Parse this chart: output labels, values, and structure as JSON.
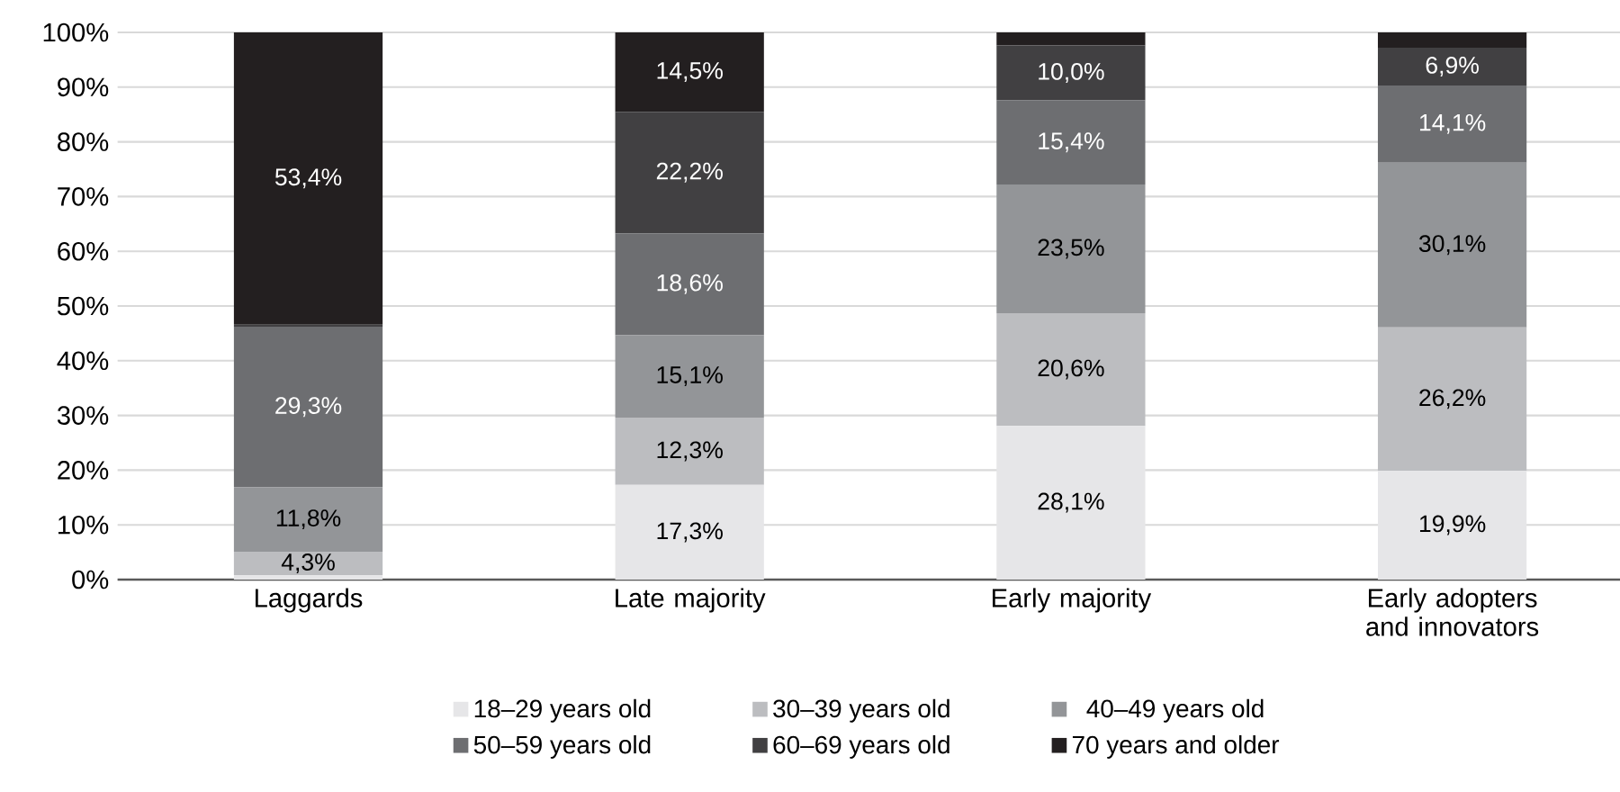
{
  "chart_data": {
    "type": "bar",
    "stacked": true,
    "categories": [
      "Laggards",
      "Late majority",
      "Early majority",
      "Early adopters and innovators"
    ],
    "series": [
      {
        "name": "18–29 years old",
        "color": "#e6e6e8",
        "values": [
          0.8,
          17.3,
          28.1,
          19.9
        ],
        "value_labels": [
          null,
          "17,3%",
          "28,1%",
          "19,9%"
        ]
      },
      {
        "name": "30–39 years old",
        "color": "#bcbdc0",
        "values": [
          4.3,
          12.3,
          20.6,
          26.2
        ],
        "value_labels": [
          "4,3%",
          "12,3%",
          "20,6%",
          "26,2%"
        ]
      },
      {
        "name": "40–49 years old",
        "color": "#939598",
        "values": [
          11.8,
          15.1,
          23.5,
          30.1
        ],
        "value_labels": [
          "11,8%",
          "15,1%",
          "23,5%",
          "30,1%"
        ]
      },
      {
        "name": "50–59 years old",
        "color": "#6d6e71",
        "values": [
          29.3,
          18.6,
          15.4,
          14.1
        ],
        "value_labels": [
          "29,3%",
          "18,6%",
          "15,4%",
          "14,1%"
        ]
      },
      {
        "name": "60–69 years old",
        "color": "#414042",
        "values": [
          0.4,
          22.2,
          10.0,
          6.9
        ],
        "value_labels": [
          null,
          "22,2%",
          "10,0%",
          "6,9%"
        ]
      },
      {
        "name": "70 years and older",
        "color": "#231f20",
        "values": [
          53.4,
          14.5,
          2.4,
          2.8
        ],
        "value_labels": [
          "53,4%",
          "14,5%",
          null,
          null
        ]
      }
    ],
    "ylim": [
      0,
      100
    ],
    "yticks": [
      {
        "value": 0,
        "label": "0%"
      },
      {
        "value": 10,
        "label": "10%"
      },
      {
        "value": 20,
        "label": "20%"
      },
      {
        "value": 30,
        "label": "30%"
      },
      {
        "value": 40,
        "label": "40%"
      },
      {
        "value": 50,
        "label": "50%"
      },
      {
        "value": 60,
        "label": "60%"
      },
      {
        "value": 70,
        "label": "70%"
      },
      {
        "value": 80,
        "label": "80%"
      },
      {
        "value": 90,
        "label": "90%"
      },
      {
        "value": 100,
        "label": "100%"
      }
    ],
    "grid": "y",
    "legend": "bottom"
  }
}
